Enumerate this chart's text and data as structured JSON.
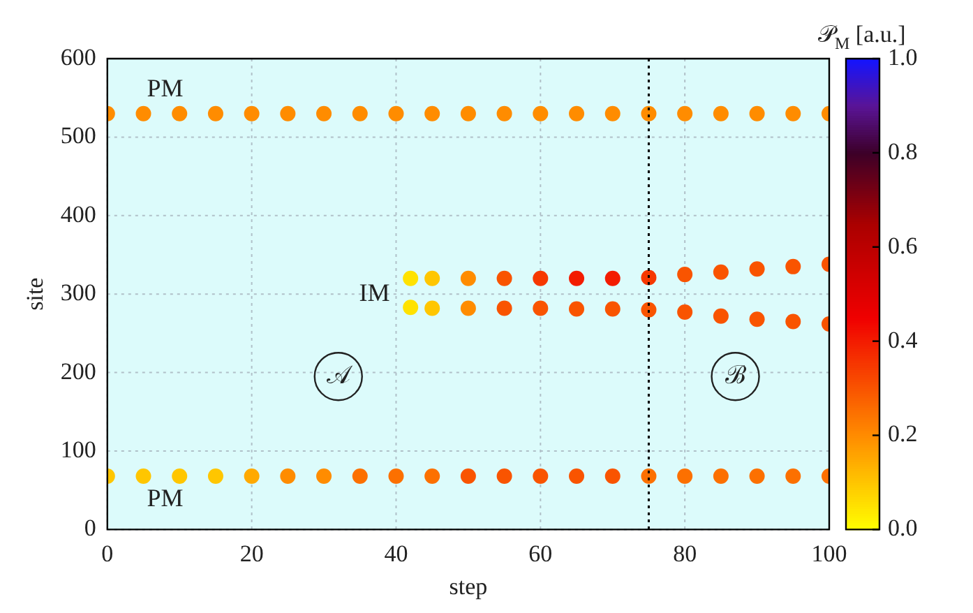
{
  "chart_data": {
    "type": "scatter",
    "xlabel": "step",
    "ylabel": "site",
    "clabel": "𝒫$_{M}$ [a.u.]",
    "xlim": [
      0,
      100
    ],
    "xticks": [
      0,
      20,
      40,
      60,
      80,
      100
    ],
    "ylim": [
      0,
      600
    ],
    "yticks": [
      0,
      100,
      200,
      300,
      400,
      500,
      600
    ],
    "clim": [
      0,
      1
    ],
    "cticks": [
      {
        "value": 0,
        "label": "0.0"
      },
      {
        "value": 0.2,
        "label": "0.2"
      },
      {
        "value": 0.4,
        "label": "0.4"
      },
      {
        "value": 0.6,
        "label": "0.6"
      },
      {
        "value": 0.8,
        "label": "0.8"
      },
      {
        "value": 1,
        "label": "1.0"
      }
    ],
    "grid": true,
    "marker": "circle",
    "series": [
      {
        "x": [
          0,
          5,
          10,
          15,
          20,
          25,
          30,
          35,
          40,
          45,
          50,
          55,
          60,
          65,
          70,
          75,
          80,
          85,
          90,
          95,
          100
        ],
        "values": [
          530,
          530,
          530,
          530,
          530,
          530,
          530,
          530,
          530,
          530,
          530,
          530,
          530,
          530,
          530,
          530,
          530,
          530,
          530,
          530,
          530
        ],
        "color": "#ff8c00"
      },
      {
        "x": [
          42,
          45,
          50,
          55,
          60,
          65,
          70,
          75,
          80,
          85,
          90,
          95,
          100
        ],
        "values": [
          320,
          320,
          320,
          320,
          320,
          320,
          320,
          321,
          325,
          328,
          332,
          335,
          338
        ],
        "colors": [
          "#ffe200",
          "#ffc600",
          "#ff8c00",
          "#f95400",
          "#f63800",
          "#f31c00",
          "#f31c00",
          "#f63800",
          "#f95400",
          "#f95400",
          "#f95400",
          "#f95400",
          "#f95400"
        ]
      },
      {
        "x": [
          42,
          45,
          50,
          55,
          60,
          65,
          70,
          75,
          80,
          85,
          90,
          95,
          100
        ],
        "values": [
          283,
          282,
          282,
          282,
          282,
          281,
          281,
          280,
          277,
          272,
          268,
          265,
          262
        ],
        "colors": [
          "#ffe200",
          "#ffc600",
          "#ff8c00",
          "#f95400",
          "#f95400",
          "#f95400",
          "#f95400",
          "#f95400",
          "#f95400",
          "#f95400",
          "#f95400",
          "#f95400",
          "#f95400"
        ]
      },
      {
        "x": [
          0,
          5,
          10,
          15,
          20,
          25,
          30,
          35,
          40,
          45,
          50,
          55,
          60,
          65,
          70,
          75,
          80,
          85,
          90,
          95,
          100
        ],
        "values": [
          68,
          68,
          68,
          68,
          68,
          68,
          68,
          68,
          68,
          68,
          68,
          68,
          68,
          68,
          68,
          68,
          68,
          68,
          68,
          68,
          68
        ],
        "colors": [
          "#ffc600",
          "#ffc600",
          "#ffc600",
          "#ffc600",
          "#ffa900",
          "#ff8c00",
          "#ff8c00",
          "#fc7000",
          "#fc7000",
          "#fc7000",
          "#f95400",
          "#f95400",
          "#f95400",
          "#f95400",
          "#f95400",
          "#fc7000",
          "#fc7000",
          "#fc7000",
          "#fc7000",
          "#fc7000",
          "#fc7000"
        ]
      }
    ],
    "ref_lines": [
      {
        "axis": "x",
        "value": 75,
        "line_style": "dotted",
        "color": "#000000"
      }
    ],
    "annotations": [
      "PM",
      "PM",
      "IM",
      {
        "text": "𝒜",
        "x": 32,
        "y": 195
      },
      {
        "text": "ℬ",
        "x": 87,
        "y": 195
      }
    ]
  }
}
